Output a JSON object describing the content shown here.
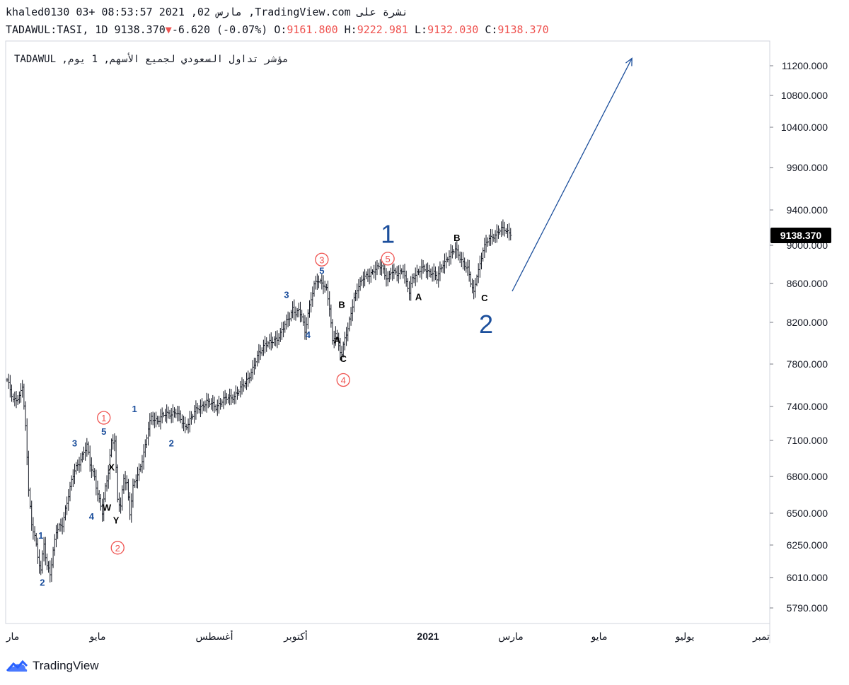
{
  "header": {
    "line1": "khaled0130 03+ 08:53:57 2021 ,02 مارس ,TradingView.com نشرة على",
    "symbol": "TADAWUL:TASI, 1D",
    "last": "9138.370",
    "change": "-6.620 (-0.07%)",
    "o_label": "O:",
    "o_value": "9161.800",
    "h_label": "H:",
    "h_value": "9222.981",
    "l_label": "L:",
    "l_value": "9132.030",
    "c_label": "C:",
    "c_value": "9138.370"
  },
  "watermark": "TADAWUL ,مؤشر تداول السعودي لجميع الأسهم, 1 يوم",
  "brand": "TradingView",
  "colors": {
    "red": "#ef5350",
    "blue": "#1c4f9c",
    "bar": "#131722",
    "badge": "#000000"
  },
  "chart_data": {
    "type": "ohlc",
    "title": "TADAWUL:TASI, 1D",
    "y_ticks": [
      5790,
      6010,
      6250,
      6500,
      6800,
      7100,
      7400,
      7800,
      8200,
      8600,
      9000,
      9400,
      9900,
      10400,
      10800,
      11200
    ],
    "y_tick_labels": [
      "5790.000",
      "6010.000",
      "6250.000",
      "6500.000",
      "6800.000",
      "7100.000",
      "7400.000",
      "7800.000",
      "8200.000",
      "8600.000",
      "9000.000",
      "9400.000",
      "9900.000",
      "10400.000",
      "10800.000",
      "11200.000"
    ],
    "x_labels": [
      "مار",
      "مايو",
      "أغسطس",
      "أكتوبر",
      "2021",
      "مارس",
      "مايو",
      "يوليو",
      "تمبر"
    ],
    "last_price_label": "9138.370",
    "close_path": [
      [
        0,
        7650
      ],
      [
        4,
        7450
      ],
      [
        8,
        7500
      ],
      [
        10,
        7600
      ],
      [
        12,
        7200
      ],
      [
        14,
        6700
      ],
      [
        16,
        6400
      ],
      [
        18,
        6350
      ],
      [
        20,
        6150
      ],
      [
        22,
        6060
      ],
      [
        24,
        6250
      ],
      [
        26,
        6100
      ],
      [
        28,
        6050
      ],
      [
        30,
        6200
      ],
      [
        32,
        6350
      ],
      [
        36,
        6420
      ],
      [
        40,
        6650
      ],
      [
        44,
        6850
      ],
      [
        48,
        6950
      ],
      [
        52,
        7050
      ],
      [
        54,
        6900
      ],
      [
        57,
        6800
      ],
      [
        60,
        6600
      ],
      [
        62,
        6500
      ],
      [
        64,
        6700
      ],
      [
        66,
        6850
      ],
      [
        68,
        7100
      ],
      [
        70,
        7100
      ],
      [
        72,
        6600
      ],
      [
        74,
        6550
      ],
      [
        76,
        6800
      ],
      [
        78,
        6750
      ],
      [
        80,
        6500
      ],
      [
        82,
        6700
      ],
      [
        84,
        6780
      ],
      [
        86,
        6850
      ],
      [
        88,
        6950
      ],
      [
        90,
        7050
      ],
      [
        92,
        7200
      ],
      [
        94,
        7300
      ],
      [
        98,
        7280
      ],
      [
        102,
        7320
      ],
      [
        106,
        7340
      ],
      [
        110,
        7350
      ],
      [
        114,
        7260
      ],
      [
        116,
        7220
      ],
      [
        120,
        7300
      ],
      [
        124,
        7380
      ],
      [
        130,
        7440
      ],
      [
        136,
        7400
      ],
      [
        140,
        7450
      ],
      [
        144,
        7480
      ],
      [
        148,
        7500
      ],
      [
        152,
        7560
      ],
      [
        156,
        7650
      ],
      [
        160,
        7750
      ],
      [
        164,
        7900
      ],
      [
        168,
        8000
      ],
      [
        172,
        8000
      ],
      [
        176,
        8050
      ],
      [
        180,
        8150
      ],
      [
        184,
        8250
      ],
      [
        186,
        8350
      ],
      [
        188,
        8300
      ],
      [
        190,
        8320
      ],
      [
        192,
        8250
      ],
      [
        194,
        8100
      ],
      [
        196,
        8300
      ],
      [
        198,
        8450
      ],
      [
        200,
        8580
      ],
      [
        202,
        8620
      ],
      [
        206,
        8600
      ],
      [
        208,
        8550
      ],
      [
        210,
        8350
      ],
      [
        212,
        8000
      ],
      [
        214,
        8100
      ],
      [
        216,
        7980
      ],
      [
        218,
        7900
      ],
      [
        220,
        8050
      ],
      [
        222,
        8120
      ],
      [
        224,
        8300
      ],
      [
        226,
        8450
      ],
      [
        228,
        8550
      ],
      [
        232,
        8650
      ],
      [
        236,
        8700
      ],
      [
        240,
        8750
      ],
      [
        244,
        8780
      ],
      [
        246,
        8700
      ],
      [
        248,
        8650
      ],
      [
        250,
        8720
      ],
      [
        254,
        8700
      ],
      [
        258,
        8750
      ],
      [
        260,
        8600
      ],
      [
        262,
        8500
      ],
      [
        264,
        8650
      ],
      [
        266,
        8700
      ],
      [
        270,
        8760
      ],
      [
        274,
        8720
      ],
      [
        278,
        8720
      ],
      [
        280,
        8650
      ],
      [
        284,
        8800
      ],
      [
        288,
        8900
      ],
      [
        292,
        8950
      ],
      [
        294,
        8900
      ],
      [
        296,
        8850
      ],
      [
        300,
        8750
      ],
      [
        302,
        8600
      ],
      [
        304,
        8500
      ],
      [
        306,
        8700
      ],
      [
        308,
        8800
      ],
      [
        310,
        8950
      ],
      [
        314,
        9080
      ],
      [
        318,
        9120
      ],
      [
        322,
        9180
      ],
      [
        324,
        9180
      ],
      [
        328,
        9138
      ]
    ],
    "projection": {
      "from": [
        329,
        8520
      ],
      "to": [
        407,
        11300
      ]
    },
    "wave_labels": [
      {
        "text": "1",
        "x": 22,
        "y": 6300,
        "color": "blue",
        "size": "small"
      },
      {
        "text": "2",
        "x": 23,
        "y": 5950,
        "color": "blue",
        "size": "small"
      },
      {
        "text": "3",
        "x": 44,
        "y": 7050,
        "color": "blue",
        "size": "small"
      },
      {
        "text": "4",
        "x": 55,
        "y": 6450,
        "color": "blue",
        "size": "small"
      },
      {
        "text": "5",
        "x": 63,
        "y": 7150,
        "color": "blue",
        "size": "small"
      },
      {
        "text": "1",
        "x": 83,
        "y": 7350,
        "color": "blue",
        "size": "small"
      },
      {
        "text": "2",
        "x": 107,
        "y": 7050,
        "color": "blue",
        "size": "small"
      },
      {
        "text": "3",
        "x": 182,
        "y": 8450,
        "color": "blue",
        "size": "small"
      },
      {
        "text": "4",
        "x": 196,
        "y": 8050,
        "color": "blue",
        "size": "small"
      },
      {
        "text": "5",
        "x": 205,
        "y": 8700,
        "color": "blue",
        "size": "small"
      },
      {
        "text": "X",
        "x": 68,
        "y": 6850,
        "color": "black",
        "size": "small"
      },
      {
        "text": "W",
        "x": 65,
        "y": 6520,
        "color": "black",
        "size": "small"
      },
      {
        "text": "Y",
        "x": 71,
        "y": 6420,
        "color": "black",
        "size": "small"
      },
      {
        "text": "B",
        "x": 218,
        "y": 8350,
        "color": "black",
        "size": "small"
      },
      {
        "text": "A",
        "x": 215,
        "y": 8000,
        "color": "black",
        "size": "small"
      },
      {
        "text": "C",
        "x": 219,
        "y": 7820,
        "color": "black",
        "size": "small"
      },
      {
        "text": "A",
        "x": 268,
        "y": 8430,
        "color": "black",
        "size": "small"
      },
      {
        "text": "B",
        "x": 293,
        "y": 9050,
        "color": "black",
        "size": "small"
      },
      {
        "text": "C",
        "x": 311,
        "y": 8420,
        "color": "black",
        "size": "small"
      },
      {
        "text": "1",
        "x": 248,
        "y": 9030,
        "color": "blue",
        "size": "large"
      },
      {
        "text": "2",
        "x": 312,
        "y": 8100,
        "color": "blue",
        "size": "large"
      }
    ],
    "circled_labels": [
      {
        "text": "1",
        "x": 63,
        "y": 7300
      },
      {
        "text": "2",
        "x": 72,
        "y": 6230
      },
      {
        "text": "3",
        "x": 205,
        "y": 8850
      },
      {
        "text": "4",
        "x": 219,
        "y": 7650
      },
      {
        "text": "5",
        "x": 248,
        "y": 8860
      }
    ]
  }
}
